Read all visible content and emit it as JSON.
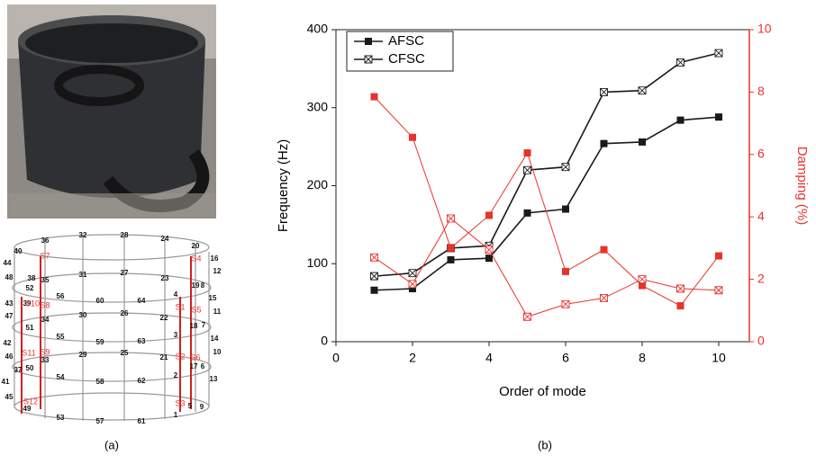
{
  "panel_a": {
    "label": "(a)",
    "node_labels": [
      "36",
      "32",
      "28",
      "24",
      "20",
      "16",
      "12",
      "40",
      "44",
      "48",
      "52",
      "35",
      "31",
      "27",
      "23",
      "19",
      "15",
      "56",
      "60",
      "64",
      "4",
      "8",
      "11",
      "39",
      "43",
      "47",
      "51",
      "34",
      "30",
      "26",
      "22",
      "18",
      "14",
      "7",
      "3",
      "10",
      "42",
      "46",
      "50",
      "55",
      "59",
      "63",
      "13",
      "29",
      "25",
      "21",
      "17",
      "2",
      "6",
      "9",
      "37",
      "41",
      "45",
      "49",
      "54",
      "58",
      "62",
      "1",
      "5",
      "53",
      "57",
      "61",
      "38",
      "33"
    ],
    "sensor_labels": [
      "S7",
      "S4",
      "S10",
      "S8",
      "S1",
      "S5",
      "S11",
      "S9",
      "S2",
      "S6",
      "S12",
      "S3"
    ]
  },
  "panel_b": {
    "label": "(b)"
  },
  "chart_data": {
    "type": "line",
    "x_label": "Order of mode",
    "y_label": "Frequency (Hz)",
    "y2_label": "Damping (%)",
    "x": [
      1,
      2,
      3,
      4,
      5,
      6,
      7,
      8,
      9,
      10
    ],
    "xlim": [
      0,
      10.8
    ],
    "xticks": [
      0,
      2,
      4,
      6,
      8,
      10
    ],
    "ylim": [
      0,
      400
    ],
    "yticks": [
      0,
      100,
      200,
      300,
      400
    ],
    "y2lim": [
      0,
      10
    ],
    "y2ticks": [
      0,
      2,
      4,
      6,
      8,
      10
    ],
    "legend": "top-left",
    "series": [
      {
        "name": "AFSC",
        "color": "#1a1a1a",
        "marker": "filled-square",
        "values": [
          66,
          68,
          105,
          107,
          165,
          170,
          254,
          256,
          284,
          288
        ]
      },
      {
        "name": "CFSC",
        "color": "#1a1a1a",
        "marker": "cross-square",
        "values": [
          84,
          88,
          120,
          123,
          220,
          224,
          320,
          322,
          358,
          370
        ]
      },
      {
        "color": "#e8332a",
        "marker": "filled-square",
        "axis": "y2",
        "values": [
          7.85,
          6.55,
          3.0,
          4.05,
          6.05,
          2.25,
          2.95,
          1.8,
          1.15,
          2.75
        ]
      },
      {
        "color": "#e8332a",
        "marker": "cross-square",
        "axis": "y2",
        "values": [
          2.7,
          1.85,
          3.95,
          2.95,
          0.8,
          1.2,
          1.4,
          2.0,
          1.7,
          1.65
        ]
      }
    ]
  }
}
